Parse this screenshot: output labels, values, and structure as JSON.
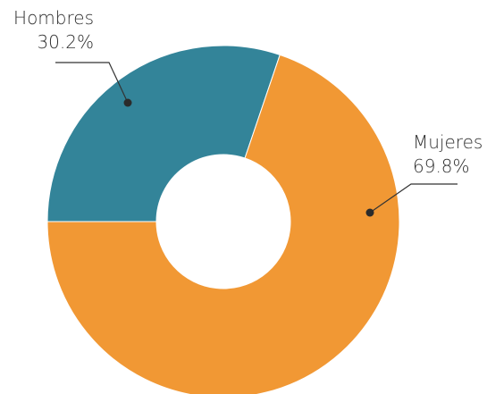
{
  "chart_data": {
    "type": "pie",
    "donut": true,
    "title": "",
    "categories": [
      "Hombres",
      "Mujeres"
    ],
    "values": [
      30.2,
      69.8
    ],
    "value_labels": [
      "30.2%",
      "69.8%"
    ],
    "colors": [
      "#338499",
      "#f19834"
    ],
    "legend": "none"
  }
}
